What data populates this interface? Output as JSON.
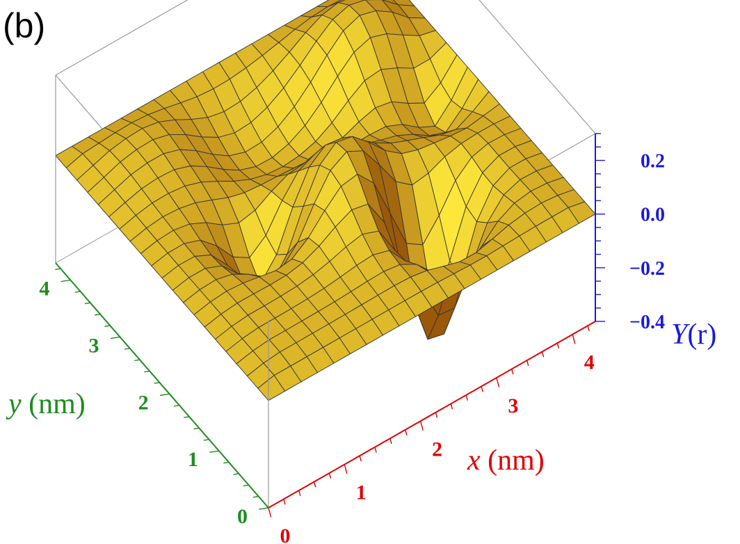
{
  "panel_label": "(b)",
  "colors": {
    "x_axis": "#e00000",
    "y_axis": "#1e8c1e",
    "z_axis": "#1a1adc",
    "surface_light": "#ffe83a",
    "surface_dark": "#9a5808",
    "mesh": "#333333",
    "box": "#999999"
  },
  "chart_data": {
    "type": "surface3d",
    "title": "",
    "xlabel": {
      "italic": "x",
      "unit": " (nm)"
    },
    "ylabel": {
      "italic": "y",
      "unit": " (nm)"
    },
    "zlabel": {
      "italic": "Y",
      "unit": "(r)"
    },
    "x_range": [
      0,
      4.3
    ],
    "y_range": [
      0,
      4.3
    ],
    "z_range": [
      -0.4,
      0.3
    ],
    "x_ticks": [
      {
        "value": 0,
        "label": "0"
      },
      {
        "value": 1,
        "label": "1"
      },
      {
        "value": 2,
        "label": "2"
      },
      {
        "value": 3,
        "label": "3"
      },
      {
        "value": 4,
        "label": "4"
      }
    ],
    "y_ticks": [
      {
        "value": 0,
        "label": "0"
      },
      {
        "value": 1,
        "label": "1"
      },
      {
        "value": 2,
        "label": "2"
      },
      {
        "value": 3,
        "label": "3"
      },
      {
        "value": 4,
        "label": "4"
      }
    ],
    "z_ticks": [
      {
        "value": 0.2,
        "label": "0.2"
      },
      {
        "value": 0.0,
        "label": "0.0"
      },
      {
        "value": -0.2,
        "label": "−0.2"
      },
      {
        "value": -0.4,
        "label": "−0.4"
      }
    ],
    "grid_points": 21,
    "surface": {
      "base": 0.02,
      "edge_value": 0.0,
      "edge_width": 0.35,
      "features": [
        {
          "x": 2.9,
          "y": 1.15,
          "z": -0.55,
          "sigma": 0.33
        },
        {
          "x": 1.3,
          "y": 2.1,
          "z": -0.28,
          "sigma": 0.33
        },
        {
          "x": 2.2,
          "y": 1.8,
          "z": 0.22,
          "sigma": 0.5
        },
        {
          "x": 1.9,
          "y": 3.3,
          "z": -0.14,
          "sigma": 0.55
        },
        {
          "x": 3.4,
          "y": 3.4,
          "z": 0.16,
          "sigma": 0.45
        },
        {
          "x": 3.9,
          "y": 2.6,
          "z": -0.18,
          "sigma": 0.38
        },
        {
          "x": 2.8,
          "y": 2.8,
          "z": -0.1,
          "sigma": 0.5
        },
        {
          "x": 1.0,
          "y": 3.6,
          "z": 0.06,
          "sigma": 0.45
        }
      ]
    }
  }
}
